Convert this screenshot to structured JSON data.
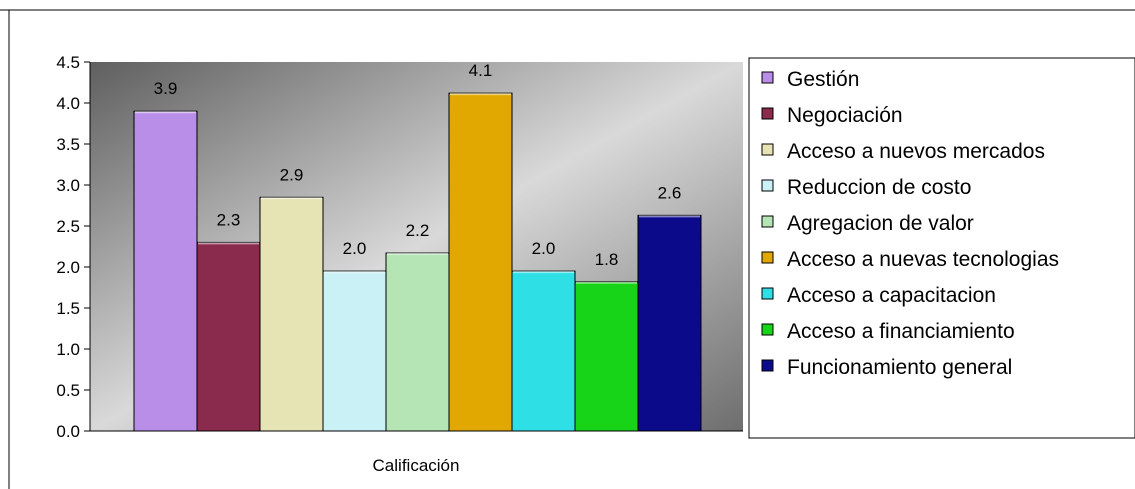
{
  "chart_data": {
    "type": "bar",
    "title": "",
    "xlabel": "Calificación",
    "ylabel": "",
    "ylim": [
      0,
      4.5
    ],
    "yticks": [
      "0.0",
      "0.5",
      "1.0",
      "1.5",
      "2.0",
      "2.5",
      "3.0",
      "3.5",
      "4.0",
      "4.5"
    ],
    "legend_position": "right",
    "grid": false,
    "series": [
      {
        "name": "Gestión",
        "value": 3.9,
        "label": "3.9",
        "color": "#b88ee8"
      },
      {
        "name": "Negociación",
        "value": 2.3,
        "label": "2.3",
        "color": "#8a2a4c"
      },
      {
        "name": "Acceso a nuevos mercados",
        "value": 2.85,
        "label": "2.9",
        "color": "#e6e3b4"
      },
      {
        "name": "Reduccion de costo",
        "value": 1.95,
        "label": "2.0",
        "color": "#c9f1f6"
      },
      {
        "name": "Agregacion de valor",
        "value": 2.17,
        "label": "2.2",
        "color": "#b5e5b5"
      },
      {
        "name": "Acceso a nuevas tecnologias",
        "value": 4.12,
        "label": "4.1",
        "color": "#e0a800"
      },
      {
        "name": "Acceso a capacitacion",
        "value": 1.95,
        "label": "2.0",
        "color": "#2ee0e6"
      },
      {
        "name": "Acceso a financiamiento",
        "value": 1.82,
        "label": "1.8",
        "color": "#18d418"
      },
      {
        "name": "Funcionamiento general",
        "value": 2.63,
        "label": "2.6",
        "color": "#0a0a8a"
      }
    ]
  }
}
